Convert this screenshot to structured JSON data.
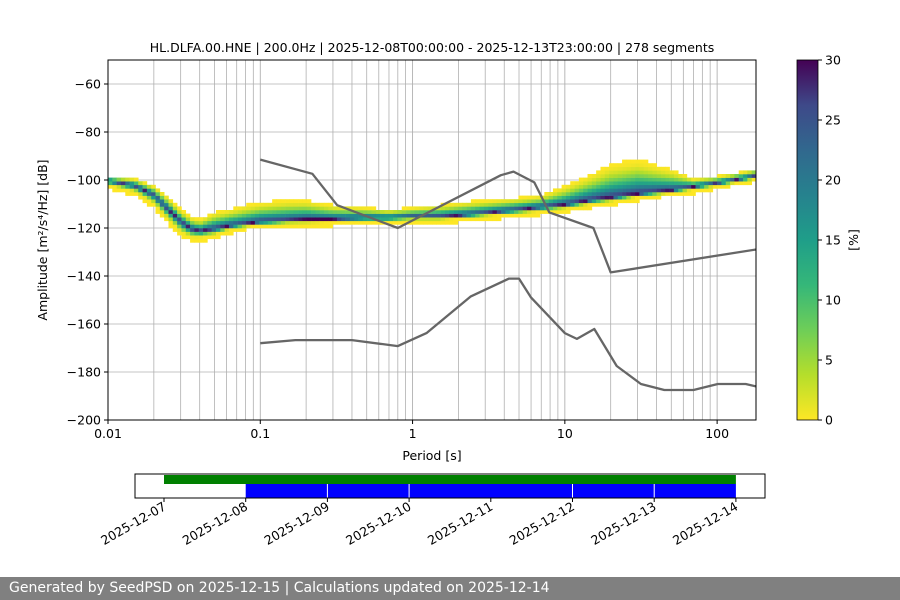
{
  "chart_data": {
    "type": "heatmap",
    "title": "HL.DLFA.00.HNE | 200.0Hz | 2025-12-08T00:00:00 - 2025-12-13T23:00:00 | 278 segments",
    "xlabel": "Period [s]",
    "ylabel": "Amplitude [m²/s⁴/Hz] [dB]",
    "x_scale": "log",
    "xlim": [
      0.01,
      180
    ],
    "ylim": [
      -200,
      -50
    ],
    "x_ticks": [
      {
        "value": 0.01,
        "label": "0.01"
      },
      {
        "value": 0.1,
        "label": "0.1"
      },
      {
        "value": 1,
        "label": "1"
      },
      {
        "value": 10,
        "label": "10"
      },
      {
        "value": 100,
        "label": "100"
      }
    ],
    "y_ticks": [
      -60,
      -80,
      -100,
      -120,
      -140,
      -160,
      -180,
      -200
    ],
    "grid": true,
    "ppsd_mode": {
      "period": [
        0.01,
        0.015,
        0.02,
        0.025,
        0.03,
        0.035,
        0.04,
        0.05,
        0.06,
        0.08,
        0.1,
        0.15,
        0.2,
        0.3,
        0.5,
        0.7,
        1,
        1.5,
        2,
        3,
        5,
        7,
        10,
        15,
        20,
        30,
        50,
        70,
        100,
        150,
        180
      ],
      "amplitude": [
        -101,
        -103,
        -107,
        -113,
        -118,
        -121,
        -122,
        -121,
        -120,
        -119,
        -118,
        -117.5,
        -117,
        -117,
        -116.5,
        -116.5,
        -116,
        -116,
        -115.5,
        -114.5,
        -113,
        -112,
        -111,
        -109,
        -108,
        -106.5,
        -105,
        -103.5,
        -102,
        -100,
        -99
      ]
    },
    "ppsd_spread": {
      "period": [
        0.01,
        0.015,
        0.02,
        0.025,
        0.03,
        0.035,
        0.04,
        0.05,
        0.06,
        0.08,
        0.1,
        0.15,
        0.2,
        0.3,
        0.5,
        0.7,
        1,
        1.5,
        2,
        3,
        5,
        7,
        10,
        15,
        20,
        30,
        50,
        70,
        100,
        150,
        180
      ],
      "upper": [
        -99,
        -100,
        -103,
        -108,
        -113,
        -116,
        -117,
        -114,
        -113,
        -111,
        -110,
        -109,
        -109,
        -111,
        -112,
        -113,
        -112,
        -111,
        -110,
        -109,
        -108,
        -107,
        -103,
        -98,
        -94,
        -92,
        -96,
        -100,
        -99,
        -97,
        -96
      ],
      "lower": [
        -103,
        -106,
        -111,
        -118,
        -123,
        -125,
        -125,
        -124,
        -122,
        -120,
        -120,
        -119,
        -119,
        -118.5,
        -118,
        -118,
        -117.5,
        -117.5,
        -117,
        -116,
        -115,
        -114,
        -113,
        -111,
        -110,
        -108,
        -106,
        -105,
        -103,
        -101,
        -100
      ]
    },
    "noise_model_high": {
      "period": [
        0.1,
        0.22,
        0.32,
        0.8,
        3.8,
        4.6,
        6.3,
        7.9,
        15.4,
        20,
        354.8
      ],
      "amplitude": [
        -91.5,
        -97.4,
        -110.5,
        -120,
        -98,
        -96.5,
        -101,
        -113.5,
        -120,
        -138.5,
        -126
      ]
    },
    "noise_model_low": {
      "period": [
        0.1,
        0.17,
        0.4,
        0.8,
        1.24,
        2.4,
        4.3,
        5,
        6,
        10,
        12,
        15.6,
        21.9,
        31.6,
        45,
        70,
        101,
        154,
        180
      ],
      "amplitude": [
        -168,
        -166.7,
        -166.7,
        -169.2,
        -163.7,
        -148.6,
        -141.1,
        -141.1,
        -149,
        -163.8,
        -166.2,
        -162.1,
        -177.5,
        -185,
        -187.5,
        -187.5,
        -185,
        -185,
        -186
      ]
    },
    "colorbar": {
      "label": "[%]",
      "range": [
        0,
        30
      ],
      "ticks": [
        0,
        5,
        10,
        15,
        20,
        25,
        30
      ],
      "colormap": "viridis_r"
    },
    "timeline": {
      "tick_labels": [
        "2025-12-07",
        "2025-12-08",
        "2025-12-09",
        "2025-12-10",
        "2025-12-11",
        "2025-12-12",
        "2025-12-13",
        "2025-12-14"
      ],
      "data_available": {
        "start": "2025-12-07",
        "end": "2025-12-14",
        "color": "#008000"
      },
      "segments_used": [
        {
          "start": "2025-12-08",
          "end": "2025-12-09"
        },
        {
          "start": "2025-12-09",
          "end": "2025-12-10"
        },
        {
          "start": "2025-12-10",
          "end": "2025-12-12"
        },
        {
          "start": "2025-12-12",
          "end": "2025-12-13"
        },
        {
          "start": "2025-12-13",
          "end": "2025-12-14"
        }
      ],
      "segments_color": "#0000ff"
    }
  },
  "footer": {
    "text": "Generated by SeedPSD on 2025-12-15 | Calculations updated on 2025-12-14",
    "background": "#808080"
  }
}
